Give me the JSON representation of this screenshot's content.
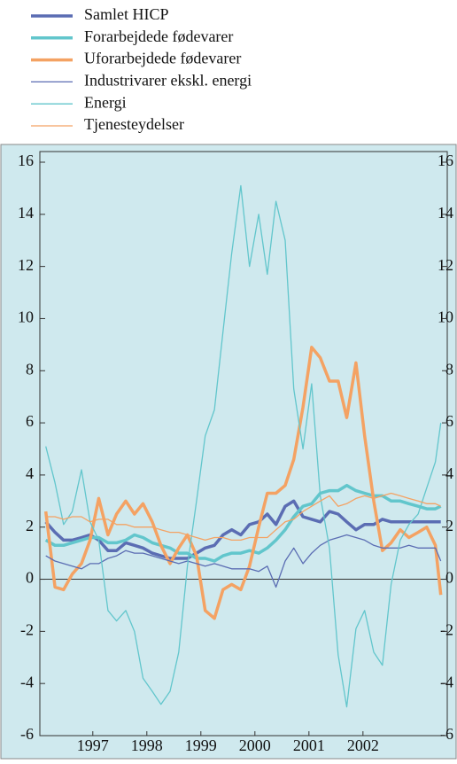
{
  "chart_data": {
    "type": "line",
    "x": [
      1996.13,
      1996.3,
      1996.46,
      1996.62,
      1996.79,
      1996.95,
      1997.11,
      1997.28,
      1997.44,
      1997.61,
      1997.77,
      1997.93,
      1998.1,
      1998.26,
      1998.43,
      1998.59,
      1998.75,
      1998.92,
      1999.08,
      1999.25,
      1999.41,
      1999.57,
      1999.74,
      1999.9,
      2000.07,
      2000.23,
      2000.39,
      2000.56,
      2000.72,
      2000.89,
      2001.05,
      2001.21,
      2001.38,
      2001.54,
      2001.7,
      2001.87,
      2002.03,
      2002.2,
      2002.36,
      2002.52,
      2002.69,
      2002.85,
      2003.02,
      2003.18,
      2003.34,
      2003.44
    ],
    "series": [
      {
        "name": "Samlet HICP",
        "color": "#5b6db3",
        "linewidth": 3.5,
        "values": [
          2.2,
          1.8,
          1.5,
          1.5,
          1.6,
          1.7,
          1.5,
          1.1,
          1.1,
          1.4,
          1.3,
          1.2,
          1.0,
          0.9,
          0.8,
          0.8,
          0.8,
          1.0,
          1.2,
          1.3,
          1.7,
          1.9,
          1.7,
          2.1,
          2.2,
          2.5,
          2.1,
          2.8,
          3.0,
          2.4,
          2.3,
          2.2,
          2.6,
          2.5,
          2.2,
          1.9,
          2.1,
          2.1,
          2.3,
          2.2,
          2.2,
          2.2,
          2.2,
          2.2,
          2.2,
          2.2
        ]
      },
      {
        "name": "Forarbejdede fødevarer",
        "color": "#62c6cc",
        "linewidth": 3.5,
        "values": [
          1.5,
          1.3,
          1.3,
          1.4,
          1.5,
          1.6,
          1.6,
          1.4,
          1.4,
          1.5,
          1.7,
          1.6,
          1.4,
          1.3,
          1.2,
          1.0,
          1.0,
          0.8,
          0.8,
          0.7,
          0.9,
          1.0,
          1.0,
          1.1,
          1.0,
          1.2,
          1.5,
          1.9,
          2.4,
          2.8,
          2.9,
          3.3,
          3.4,
          3.4,
          3.6,
          3.4,
          3.3,
          3.2,
          3.2,
          3.0,
          3.0,
          2.9,
          2.8,
          2.7,
          2.7,
          2.8
        ]
      },
      {
        "name": "Uforarbejdede fødevarer",
        "color": "#f4a263",
        "linewidth": 3.5,
        "values": [
          2.6,
          -0.3,
          -0.4,
          0.2,
          0.6,
          1.5,
          3.1,
          1.7,
          2.5,
          3.0,
          2.5,
          2.9,
          2.2,
          1.3,
          0.6,
          1.2,
          1.7,
          0.9,
          -1.2,
          -1.5,
          -0.4,
          -0.2,
          -0.4,
          0.5,
          2.0,
          3.3,
          3.3,
          3.6,
          4.6,
          6.6,
          8.9,
          8.5,
          7.6,
          7.6,
          6.2,
          8.3,
          5.5,
          3.0,
          1.1,
          1.4,
          1.9,
          1.6,
          1.8,
          2.0,
          1.3,
          -0.6
        ]
      },
      {
        "name": "Industrivarer ekskl. energi",
        "color": "#5b6db3",
        "linewidth": 1.3,
        "values": [
          0.9,
          0.7,
          0.6,
          0.5,
          0.4,
          0.6,
          0.6,
          0.8,
          0.9,
          1.1,
          1.0,
          1.0,
          0.9,
          0.8,
          0.7,
          0.6,
          0.7,
          0.6,
          0.5,
          0.6,
          0.5,
          0.4,
          0.4,
          0.4,
          0.3,
          0.5,
          -0.3,
          0.7,
          1.2,
          0.6,
          1.0,
          1.3,
          1.5,
          1.6,
          1.7,
          1.6,
          1.5,
          1.3,
          1.2,
          1.2,
          1.2,
          1.3,
          1.2,
          1.2,
          1.2,
          0.7
        ]
      },
      {
        "name": "Energi",
        "color": "#62c6cc",
        "linewidth": 1.3,
        "values": [
          5.1,
          3.7,
          2.1,
          2.6,
          4.2,
          2.2,
          1.5,
          -1.2,
          -1.6,
          -1.2,
          -2.0,
          -3.8,
          -4.3,
          -4.8,
          -4.3,
          -2.8,
          0.5,
          3.0,
          5.5,
          6.5,
          9.5,
          12.5,
          15.1,
          12.0,
          14.0,
          11.7,
          14.5,
          13.0,
          7.3,
          5.0,
          7.5,
          3.2,
          1.2,
          -2.9,
          -4.9,
          -1.9,
          -1.2,
          -2.8,
          -3.3,
          -0.2,
          1.5,
          2.1,
          2.5,
          3.5,
          4.5,
          6.0
        ]
      },
      {
        "name": "Tjenesteydelser",
        "color": "#f4a263",
        "linewidth": 1.3,
        "values": [
          2.4,
          2.4,
          2.3,
          2.4,
          2.4,
          2.2,
          2.3,
          2.3,
          2.1,
          2.1,
          2.0,
          2.0,
          2.0,
          1.9,
          1.8,
          1.8,
          1.7,
          1.6,
          1.5,
          1.6,
          1.6,
          1.5,
          1.5,
          1.6,
          1.6,
          1.6,
          1.9,
          2.2,
          2.3,
          2.6,
          2.8,
          3.0,
          3.2,
          2.8,
          2.9,
          3.1,
          3.2,
          3.1,
          3.2,
          3.3,
          3.2,
          3.1,
          3.0,
          2.9,
          2.9,
          2.8
        ]
      }
    ],
    "xlim": [
      1996.02,
      2003.56
    ],
    "xticks": [
      1997,
      1998,
      1999,
      2000,
      2001,
      2002
    ],
    "ylim": [
      -6,
      16
    ],
    "yticks": [
      -6,
      -4,
      -2,
      0,
      2,
      4,
      6,
      8,
      10,
      12,
      14,
      16
    ],
    "zero_line": true,
    "background": "#cfe9ee"
  }
}
